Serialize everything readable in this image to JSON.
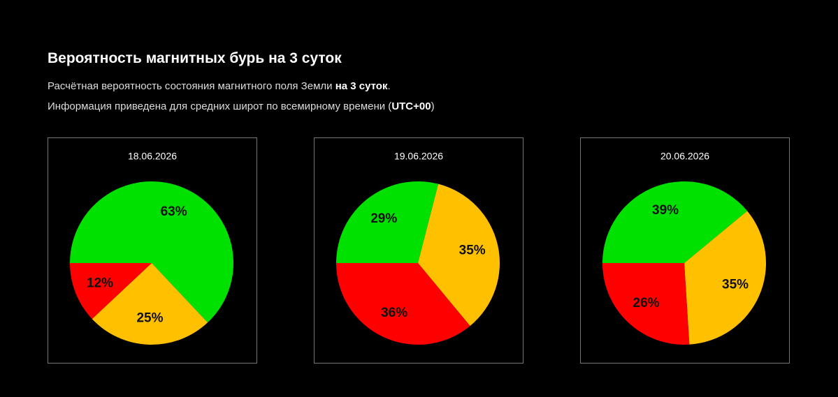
{
  "header": {
    "title": "Вероятность магнитных бурь на 3 суток",
    "lines": [
      [
        "Расчётная вероятность состояния магнитного поля Земли ",
        "на 3 суток",
        "."
      ],
      [
        "Информация приведена для средних широт по всемирному времени (",
        "UTC+00",
        ")"
      ]
    ]
  },
  "chart_data": [
    {
      "type": "pie",
      "title": "18.06.2026",
      "values": [
        63,
        25,
        12
      ],
      "value_labels": [
        "63%",
        "25%",
        "12%"
      ],
      "colors": [
        "#00e100",
        "#ffc000",
        "#ff0000"
      ]
    },
    {
      "type": "pie",
      "title": "19.06.2026",
      "values": [
        29,
        35,
        36
      ],
      "value_labels": [
        "29%",
        "35%",
        "36%"
      ],
      "colors": [
        "#00e100",
        "#ffc000",
        "#ff0000"
      ]
    },
    {
      "type": "pie",
      "title": "20.06.2026",
      "values": [
        39,
        35,
        26
      ],
      "value_labels": [
        "39%",
        "35%",
        "26%"
      ],
      "colors": [
        "#00e100",
        "#ffc000",
        "#ff0000"
      ]
    }
  ]
}
